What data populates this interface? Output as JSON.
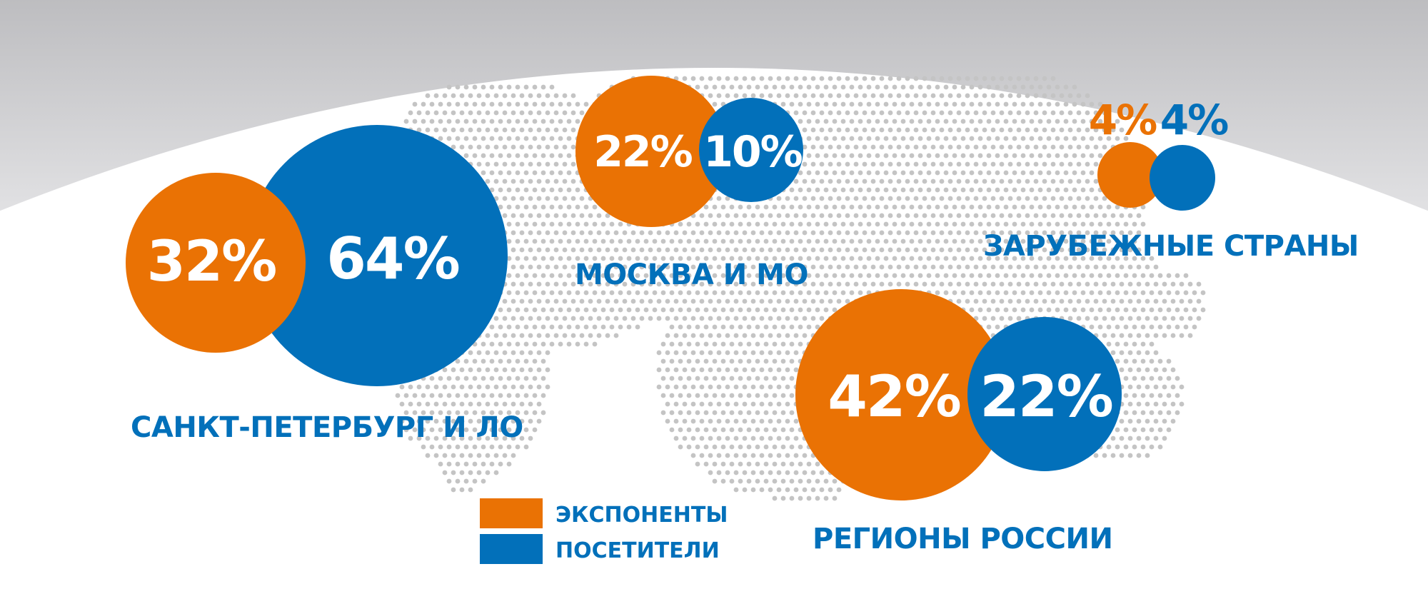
{
  "chart_data": {
    "type": "bubble",
    "series": [
      {
        "name": "ЭКСПОНЕНТЫ",
        "color": "#EA7204"
      },
      {
        "name": "ПОСЕТИТЕЛИ",
        "color": "#0270BA"
      }
    ],
    "regions": [
      {
        "label": "САНКТ-ПЕТЕРБУРГ И ЛО",
        "exhibitors": "32%",
        "visitors": "64%",
        "exhibitors_value": 32,
        "visitors_value": 64
      },
      {
        "label": "МОСКВА И МО",
        "exhibitors": "22%",
        "visitors": "10%",
        "exhibitors_value": 22,
        "visitors_value": 10
      },
      {
        "label": "ЗАРУБЕЖНЫЕ СТРАНЫ",
        "exhibitors": "4%",
        "visitors": "4%",
        "exhibitors_value": 4,
        "visitors_value": 4
      },
      {
        "label": "РЕГИОНЫ РОССИИ",
        "exhibitors": "42%",
        "visitors": "22%",
        "exhibitors_value": 42,
        "visitors_value": 22
      }
    ]
  },
  "legend": {
    "exhibitors_label": "ЭКСПОНЕНТЫ",
    "visitors_label": "ПОСЕТИТЕЛИ"
  },
  "colors": {
    "exhibitors": "#EA7204",
    "visitors": "#0270BA",
    "map_dots": "#C4C4C4",
    "background_arc": "#C9C9CB"
  }
}
